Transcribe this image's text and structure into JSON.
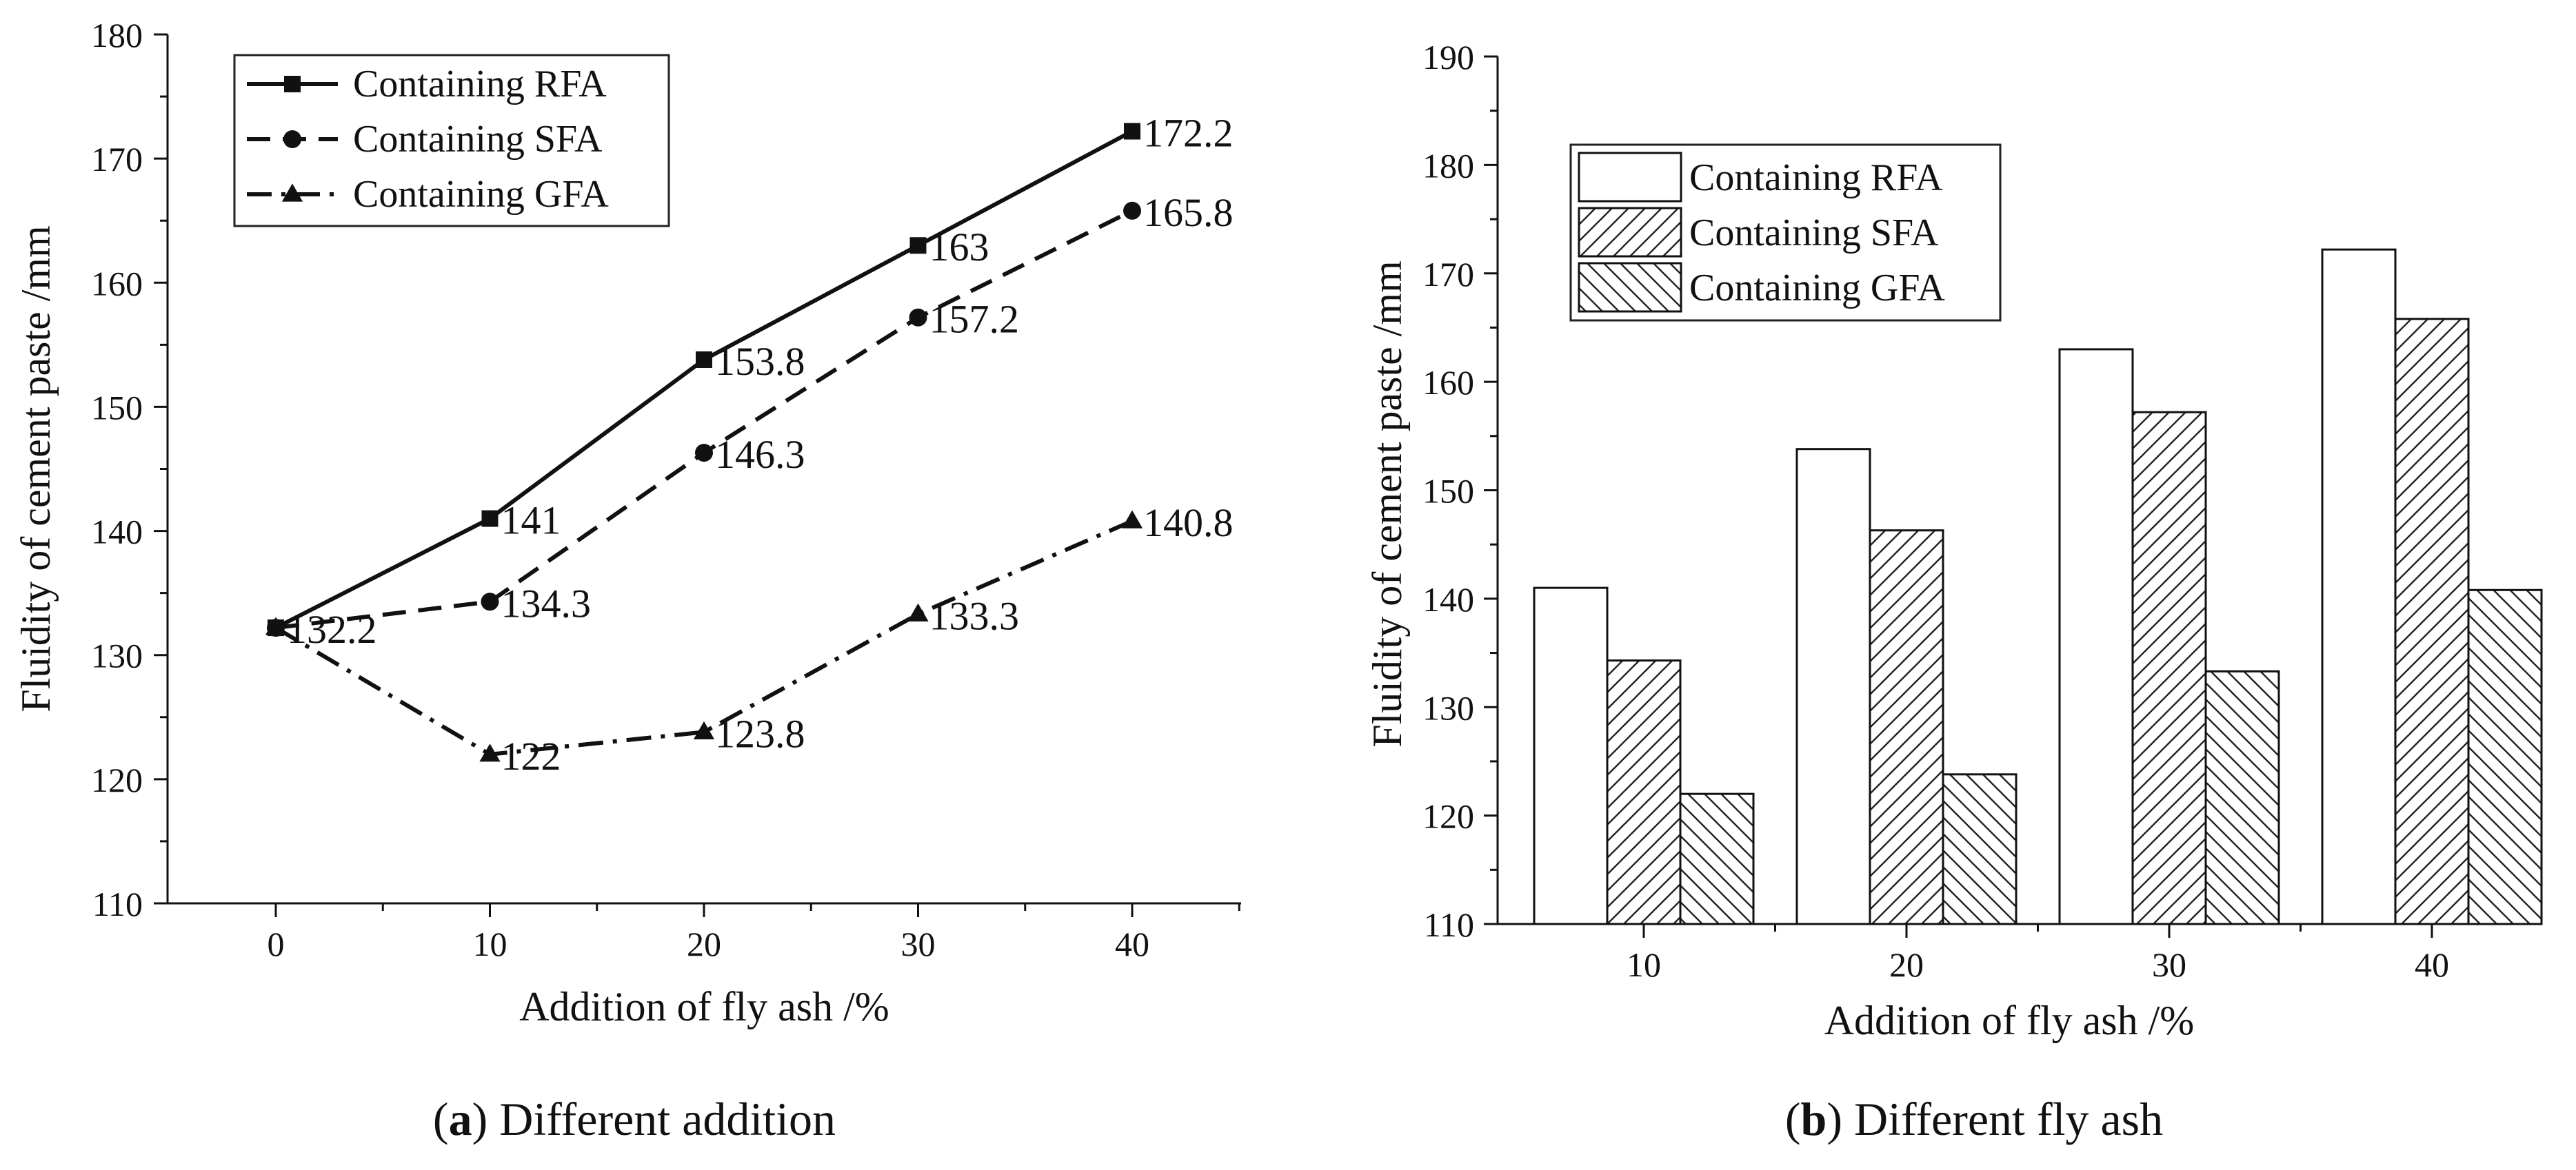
{
  "chart_data": [
    {
      "type": "line",
      "title": "",
      "caption_label": "a",
      "caption_text": "Different addition",
      "xlabel": "Addition of fly ash /%",
      "ylabel": "Fluidity of cement paste /mm",
      "xlim": [
        -5,
        45
      ],
      "ylim": [
        110,
        180
      ],
      "x_ticks": [
        0,
        10,
        20,
        30,
        40
      ],
      "y_ticks": [
        110,
        120,
        130,
        140,
        150,
        160,
        170,
        180
      ],
      "x": [
        0,
        10,
        20,
        30,
        40
      ],
      "legend_position": "top-left",
      "series": [
        {
          "name": "Containing RFA",
          "marker": "square",
          "dash": "solid",
          "values": [
            132.2,
            141,
            153.8,
            163,
            172.2
          ],
          "labels": [
            "132.2",
            "141",
            "153.8",
            "163",
            "172.2"
          ]
        },
        {
          "name": "Containing SFA",
          "marker": "circle",
          "dash": "dashed",
          "values": [
            132.2,
            134.3,
            146.3,
            157.2,
            165.8
          ],
          "labels": [
            "",
            "134.3",
            "146.3",
            "157.2",
            "165.8"
          ]
        },
        {
          "name": "Containing GFA",
          "marker": "triangle",
          "dash": "dashdot",
          "values": [
            132.2,
            122,
            123.8,
            133.3,
            140.8
          ],
          "labels": [
            "",
            "122",
            "123.8",
            "133.3",
            "140.8"
          ]
        }
      ]
    },
    {
      "type": "bar",
      "title": "",
      "caption_label": "b",
      "caption_text": "Different fly ash",
      "xlabel": "Addition of fly ash /%",
      "ylabel": "Fluidity of cement paste /mm",
      "ylim": [
        110,
        190
      ],
      "y_ticks": [
        110,
        120,
        130,
        140,
        150,
        160,
        170,
        180,
        190
      ],
      "categories": [
        "10",
        "20",
        "30",
        "40"
      ],
      "legend_position": "top-left",
      "series": [
        {
          "name": "Containing RFA",
          "pattern": "none",
          "values": [
            141,
            153.8,
            163,
            172.2
          ]
        },
        {
          "name": "Containing SFA",
          "pattern": "hatch-forward",
          "values": [
            134.3,
            146.3,
            157.2,
            165.8
          ]
        },
        {
          "name": "Containing GFA",
          "pattern": "hatch-backward",
          "values": [
            122,
            123.8,
            133.3,
            140.8
          ]
        }
      ]
    }
  ]
}
